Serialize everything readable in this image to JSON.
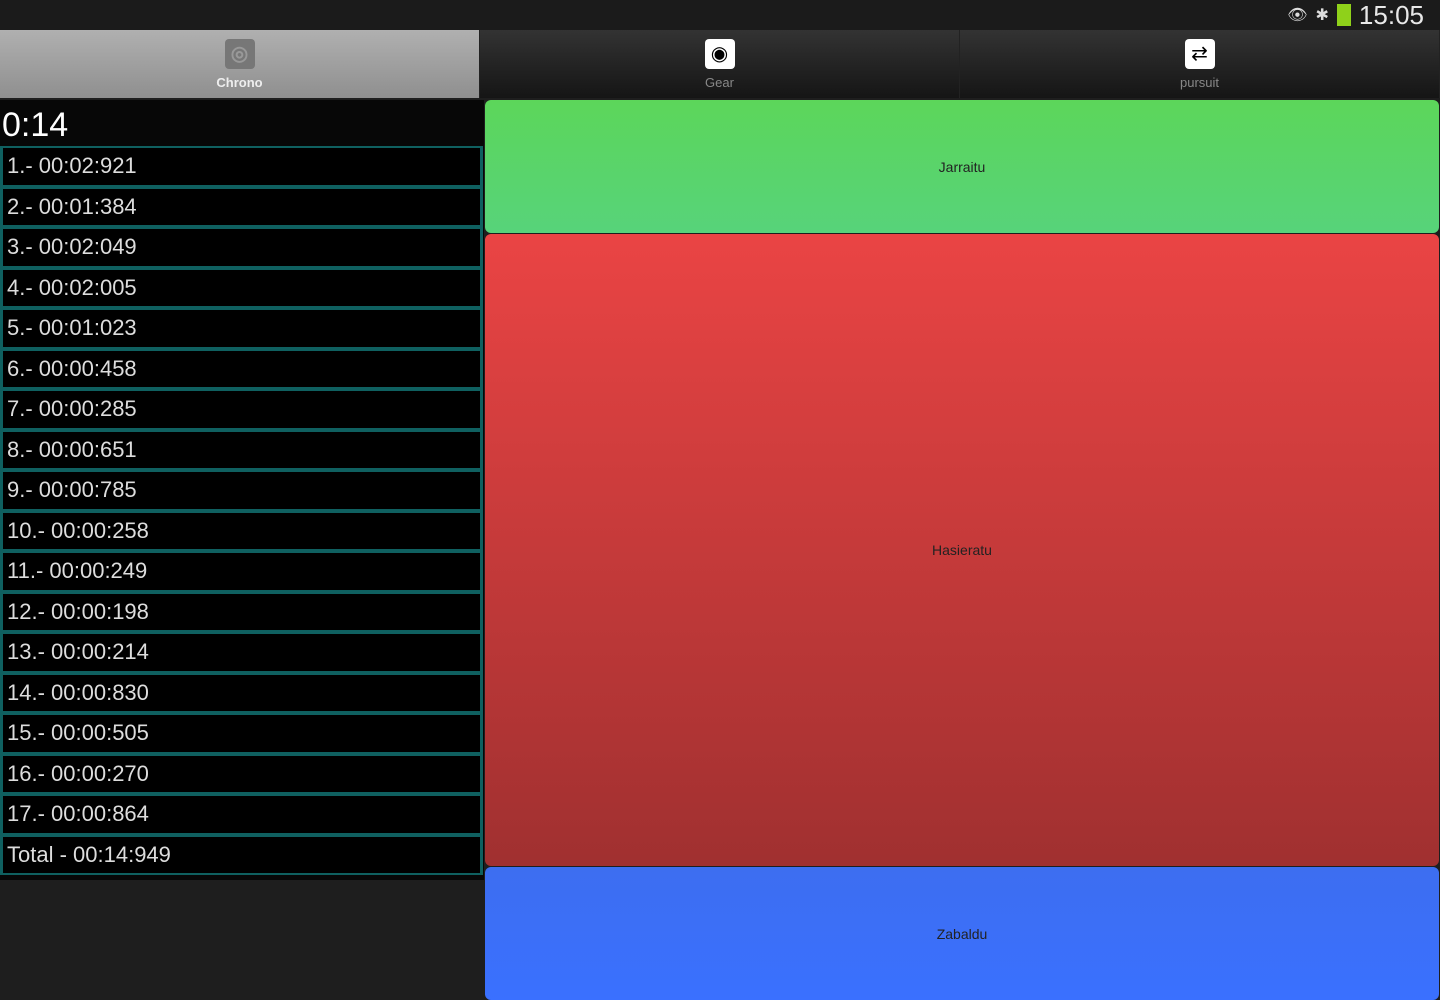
{
  "status_bar": {
    "time": "15:05",
    "icons": [
      "eye-icon",
      "bluetooth-icon",
      "battery-icon"
    ],
    "battery_color": "#8fd11a"
  },
  "tabs": [
    {
      "label": "Chrono",
      "icon": "stopwatch-icon",
      "active": true
    },
    {
      "label": "Gear",
      "icon": "gear-icon",
      "active": false
    },
    {
      "label": "pursuit",
      "icon": "pursuit-icon",
      "active": false
    }
  ],
  "chrono": {
    "elapsed": "0:14",
    "laps": [
      "1.- 00:02:921",
      "2.- 00:01:384",
      "3.- 00:02:049",
      "4.- 00:02:005",
      "5.- 00:01:023",
      "6.- 00:00:458",
      "7.- 00:00:285",
      "8.- 00:00:651",
      "9.- 00:00:785",
      "10.- 00:00:258",
      "11.- 00:00:249",
      "12.- 00:00:198",
      "13.- 00:00:214",
      "14.- 00:00:830",
      "15.- 00:00:505",
      "16.- 00:00:270",
      "17.- 00:00:864"
    ],
    "total": "Total - 00:14:949"
  },
  "buttons": {
    "continue": "Jarraitu",
    "start": "Hasieratu",
    "open": "Zabaldu"
  },
  "colors": {
    "continue": "#5cd65a",
    "start": "#d84040",
    "open": "#3d6ef0",
    "row_border": "#0f6060"
  }
}
